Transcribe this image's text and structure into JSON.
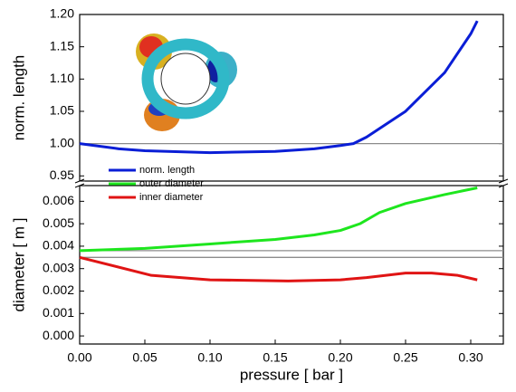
{
  "chart_data": [
    {
      "type": "line",
      "ylabel": "norm. length",
      "xlim": [
        0,
        0.325
      ],
      "ylim": [
        0.942,
        1.2
      ],
      "yticks": [
        {
          "value": 0.95,
          "label": "0.95"
        },
        {
          "value": 1.0,
          "label": "1.00"
        },
        {
          "value": 1.05,
          "label": "1.05"
        },
        {
          "value": 1.1,
          "label": "1.10"
        },
        {
          "value": 1.15,
          "label": "1.15"
        },
        {
          "value": 1.2,
          "label": "1.20"
        }
      ],
      "reference_lines": [
        1.0
      ],
      "reference_color": "#8c8c8c",
      "series": [
        {
          "name": "norm. length",
          "color": "#0a1ed6",
          "x": [
            0,
            0.03,
            0.05,
            0.1,
            0.15,
            0.18,
            0.2,
            0.21,
            0.22,
            0.25,
            0.28,
            0.3,
            0.305
          ],
          "values": [
            1.0,
            0.992,
            0.989,
            0.986,
            0.988,
            0.992,
            0.997,
            1.0,
            1.01,
            1.05,
            1.11,
            1.17,
            1.19
          ]
        }
      ]
    },
    {
      "type": "line",
      "xlabel": "pressure [ bar ]",
      "ylabel": "diameter [ m ]",
      "xlim": [
        0,
        0.325
      ],
      "ylim": [
        -0.00036,
        0.0067
      ],
      "xticks": [
        {
          "value": 0,
          "label": "0.00"
        },
        {
          "value": 0.05,
          "label": "0.05"
        },
        {
          "value": 0.1,
          "label": "0.10"
        },
        {
          "value": 0.15,
          "label": "0.15"
        },
        {
          "value": 0.2,
          "label": "0.20"
        },
        {
          "value": 0.25,
          "label": "0.25"
        },
        {
          "value": 0.3,
          "label": "0.30"
        }
      ],
      "yticks": [
        {
          "value": 0,
          "label": "0.000"
        },
        {
          "value": 0.001,
          "label": "0.001"
        },
        {
          "value": 0.002,
          "label": "0.002"
        },
        {
          "value": 0.003,
          "label": "0.003"
        },
        {
          "value": 0.004,
          "label": "0.004"
        },
        {
          "value": 0.005,
          "label": "0.005"
        },
        {
          "value": 0.006,
          "label": "0.006"
        }
      ],
      "reference_lines": [
        0.0038,
        0.0035
      ],
      "reference_color": "#8c8c8c",
      "series": [
        {
          "name": "outer diameter",
          "color": "#1ee61e",
          "x": [
            0,
            0.05,
            0.1,
            0.15,
            0.18,
            0.2,
            0.215,
            0.23,
            0.25,
            0.28,
            0.305
          ],
          "values": [
            0.0038,
            0.0039,
            0.0041,
            0.0043,
            0.0045,
            0.0047,
            0.005,
            0.0055,
            0.0059,
            0.0063,
            0.0066
          ]
        },
        {
          "name": "inner diameter",
          "color": "#e01414",
          "x": [
            0,
            0.055,
            0.1,
            0.16,
            0.2,
            0.22,
            0.25,
            0.27,
            0.29,
            0.305
          ],
          "values": [
            0.0035,
            0.0027,
            0.0025,
            0.00245,
            0.0025,
            0.0026,
            0.0028,
            0.0028,
            0.0027,
            0.0025
          ]
        }
      ]
    }
  ]
}
